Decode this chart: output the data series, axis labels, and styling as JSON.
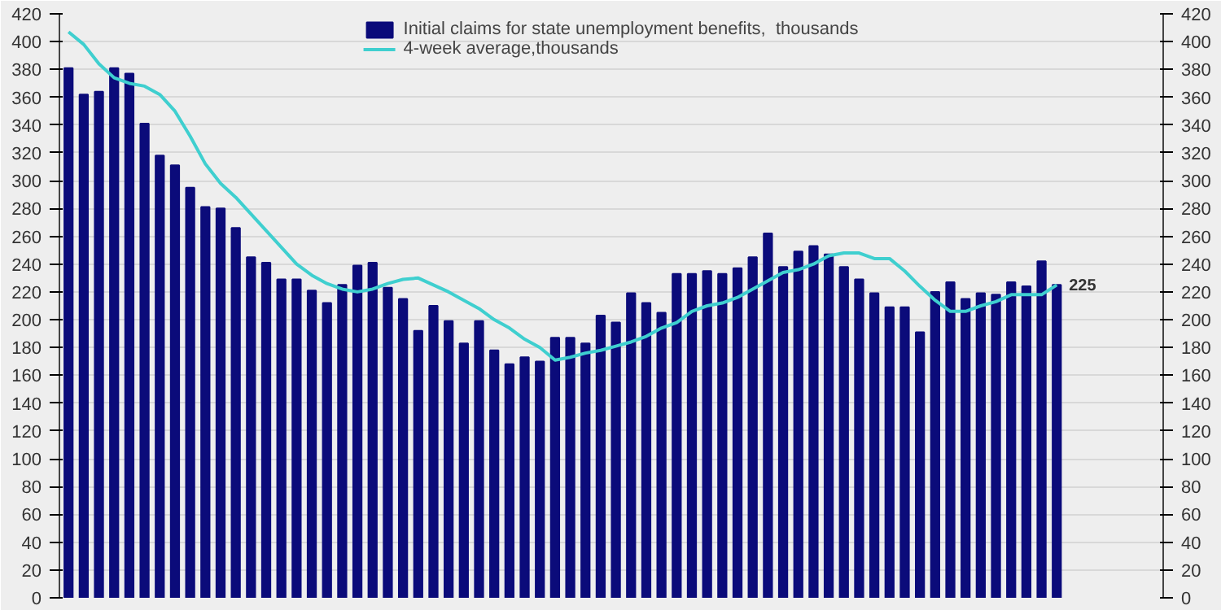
{
  "chart_data": {
    "type": "bar",
    "categories": [
      null,
      null,
      null,
      null,
      null,
      null,
      null,
      null,
      null,
      null,
      null,
      null,
      null,
      null,
      null,
      null,
      null,
      null,
      null,
      null,
      null,
      null,
      null,
      null,
      null,
      null,
      null,
      null,
      null,
      null,
      null,
      null,
      null,
      null,
      null,
      null,
      null,
      null,
      null,
      null,
      null,
      null,
      null,
      null,
      null,
      null,
      null,
      null,
      null,
      null,
      null,
      null,
      null,
      null,
      null,
      null,
      null,
      null,
      null,
      null,
      null,
      null,
      null,
      null,
      null,
      null
    ],
    "series": [
      {
        "name": "Initial claims for state unemployment benefits,  thousands",
        "color": "#0b0b7a",
        "values": [
          381,
          362,
          364,
          381,
          377,
          341,
          318,
          311,
          295,
          281,
          280,
          266,
          245,
          241,
          229,
          229,
          221,
          212,
          225,
          239,
          241,
          223,
          215,
          192,
          210,
          199,
          183,
          199,
          178,
          168,
          173,
          170,
          187,
          187,
          183,
          203,
          198,
          219,
          212,
          205,
          233,
          233,
          235,
          233,
          237,
          245,
          262,
          238,
          249,
          253,
          247,
          238,
          229,
          219,
          209,
          209,
          191,
          220,
          227,
          215,
          219,
          218,
          227,
          224,
          242,
          225
        ]
      },
      {
        "name": "4-week average,thousands",
        "type": "line",
        "color": "#3fcfcf",
        "values": [
          407,
          398,
          384,
          374,
          370,
          368,
          362,
          350,
          332,
          312,
          298,
          288,
          276,
          264,
          252,
          240,
          232,
          226,
          222,
          220,
          222,
          226,
          229,
          230,
          225,
          220,
          214,
          208,
          200,
          194,
          186,
          180,
          171,
          173,
          176,
          178,
          181,
          184,
          188,
          194,
          198,
          206,
          210,
          212,
          216,
          222,
          228,
          234,
          236,
          240,
          246,
          248,
          248,
          244,
          244,
          235,
          224,
          214,
          206,
          206,
          210,
          213,
          218,
          218,
          218,
          225
        ]
      }
    ],
    "ylim": [
      0,
      420
    ],
    "yticks": [
      0,
      20,
      40,
      60,
      80,
      100,
      120,
      140,
      160,
      180,
      200,
      220,
      240,
      260,
      280,
      300,
      320,
      340,
      360,
      380,
      400,
      420
    ],
    "y2lim": [
      0,
      420
    ],
    "y2ticks": [
      0,
      20,
      40,
      60,
      80,
      100,
      120,
      140,
      160,
      180,
      200,
      220,
      240,
      260,
      280,
      300,
      320,
      340,
      360,
      380,
      400,
      420
    ],
    "grid": "y",
    "legend": "top",
    "annotations": [
      "225"
    ]
  }
}
